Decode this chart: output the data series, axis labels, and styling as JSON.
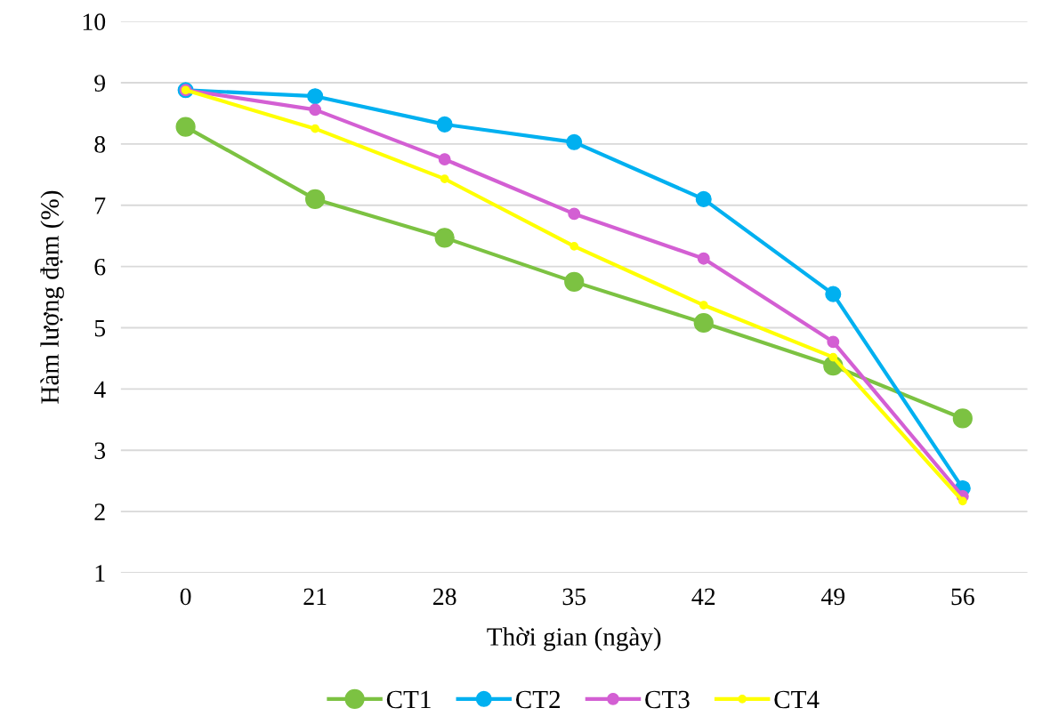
{
  "chart_data": {
    "type": "line",
    "xlabel": "Thời gian (ngày)",
    "ylabel": "Hàm lượng đạm (%)",
    "categories": [
      "0",
      "21",
      "28",
      "35",
      "42",
      "49",
      "56"
    ],
    "series": [
      {
        "name": "CT1",
        "color": "#7cc242",
        "values": [
          8.28,
          7.1,
          6.47,
          5.75,
          5.08,
          4.38,
          3.52
        ]
      },
      {
        "name": "CT2",
        "color": "#00b0f0",
        "values": [
          8.88,
          8.78,
          8.32,
          8.03,
          7.1,
          5.55,
          2.38
        ]
      },
      {
        "name": "CT3",
        "color": "#d35fd3",
        "values": [
          8.88,
          8.56,
          7.75,
          6.86,
          6.13,
          4.77,
          2.25
        ]
      },
      {
        "name": "CT4",
        "color": "#ffff00",
        "values": [
          8.88,
          8.25,
          7.43,
          6.33,
          5.37,
          4.52,
          2.17
        ]
      }
    ],
    "ylim": [
      1,
      10
    ],
    "yticks": [
      1,
      2,
      3,
      4,
      5,
      6,
      7,
      8,
      9,
      10
    ],
    "grid": "y",
    "legend": "bottom",
    "marker": "circle",
    "line_style": "solid"
  }
}
